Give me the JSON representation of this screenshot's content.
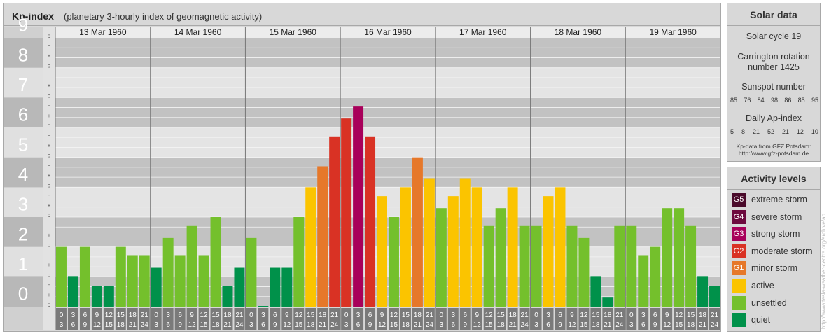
{
  "header": {
    "title": "Kp-index",
    "subtitle": "(planetary 3-hourly index of geomagnetic activity)"
  },
  "solar": {
    "title": "Solar data",
    "cycle": "Solar cycle 19",
    "carrington_line1": "Carrington rotation",
    "carrington_line2": "number 1425",
    "sunspot_label": "Sunspot number",
    "sunspot_values": [
      "85",
      "76",
      "84",
      "98",
      "86",
      "85",
      "95"
    ],
    "ap_label": "Daily Ap-index",
    "ap_values": [
      "5",
      "8",
      "21",
      "52",
      "21",
      "12",
      "10"
    ],
    "credit_line1": "Kp-data from GFZ Potsdam:",
    "credit_line2": "http://www.gfz-potsdam.de"
  },
  "activity": {
    "title": "Activity levels",
    "levels": [
      {
        "code": "G5",
        "label": "extreme storm",
        "color": "#4a0a2a"
      },
      {
        "code": "G4",
        "label": "severe storm",
        "color": "#6d0a3e"
      },
      {
        "code": "G3",
        "label": "strong storm",
        "color": "#a8005a"
      },
      {
        "code": "G2",
        "label": "moderate storm",
        "color": "#d93224"
      },
      {
        "code": "G1",
        "label": "minor storm",
        "color": "#e6782a"
      },
      {
        "code": "",
        "label": "active",
        "color": "#fbc400"
      },
      {
        "code": "",
        "label": "unsettled",
        "color": "#74c02c"
      },
      {
        "code": "",
        "label": "quiet",
        "color": "#00914a"
      }
    ]
  },
  "watermark": "http://www.tesla-weather-centre.org/archive/ap",
  "chart_data": {
    "type": "bar",
    "title": "Kp-index",
    "ylim": [
      0,
      9
    ],
    "y_ticks": [
      "0",
      "1",
      "2",
      "3",
      "4",
      "5",
      "6",
      "7",
      "8",
      "9"
    ],
    "minor_ticks": [
      "o",
      "+",
      "−"
    ],
    "days": [
      "13 Mar 1960",
      "14 Mar 1960",
      "15 Mar 1960",
      "16 Mar 1960",
      "17 Mar 1960",
      "18 Mar 1960",
      "19 Mar 1960"
    ],
    "intervals": [
      [
        "0",
        "3"
      ],
      [
        "3",
        "6"
      ],
      [
        "6",
        "9"
      ],
      [
        "9",
        "12"
      ],
      [
        "12",
        "15"
      ],
      [
        "15",
        "18"
      ],
      [
        "18",
        "21"
      ],
      [
        "21",
        "24"
      ]
    ],
    "values": [
      2.0,
      1.0,
      2.0,
      0.7,
      0.7,
      2.0,
      1.7,
      1.7,
      1.3,
      2.3,
      1.7,
      2.7,
      1.7,
      3.0,
      0.7,
      1.3,
      2.3,
      0.0,
      1.3,
      1.3,
      3.0,
      4.0,
      4.7,
      5.7,
      6.3,
      6.7,
      5.7,
      3.7,
      3.0,
      4.0,
      5.0,
      4.3,
      3.3,
      3.7,
      4.3,
      4.0,
      2.7,
      3.3,
      4.0,
      2.7,
      2.7,
      3.7,
      4.0,
      2.7,
      2.3,
      1.0,
      0.3,
      2.7,
      2.7,
      1.7,
      2.0,
      3.3,
      3.3,
      2.7,
      1.0,
      0.7
    ]
  }
}
